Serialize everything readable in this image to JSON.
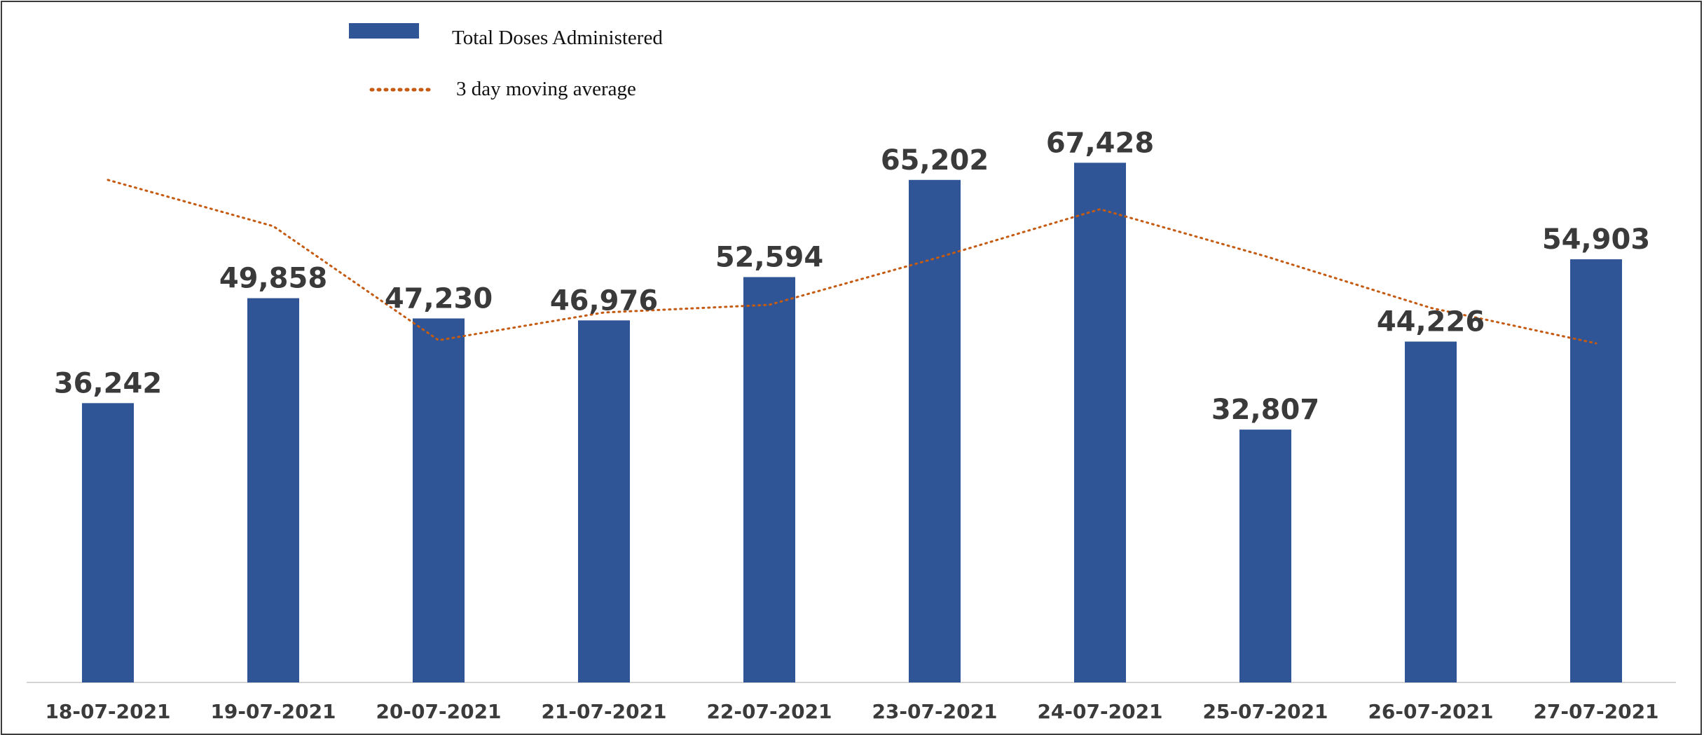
{
  "chart_data": {
    "type": "bar",
    "categories": [
      "18-07-2021",
      "19-07-2021",
      "20-07-2021",
      "21-07-2021",
      "22-07-2021",
      "23-07-2021",
      "24-07-2021",
      "25-07-2021",
      "26-07-2021",
      "27-07-2021"
    ],
    "series": [
      {
        "name": "Total Doses Administered",
        "type": "bar",
        "color": "#2f5597",
        "values": [
          36242,
          49858,
          47230,
          46976,
          52594,
          65202,
          67428,
          32807,
          44226,
          54903
        ],
        "value_labels": [
          "36,242",
          "49,858",
          "47,230",
          "46,976",
          "52,594",
          "65,202",
          "67,428",
          "32,807",
          "44,226",
          "54,903"
        ]
      },
      {
        "name": "3 day moving average",
        "type": "line",
        "style": "dotted",
        "color": "#c55a11",
        "values": [
          65200,
          59200,
          44400,
          48000,
          49000,
          55000,
          61400,
          55300,
          48600,
          44000
        ]
      }
    ],
    "legend": {
      "position": "top-left",
      "items": [
        "Total Doses Administered",
        "3 day moving average"
      ]
    },
    "title": "",
    "xlabel": "",
    "ylabel": "",
    "ylim": [
      0,
      75000
    ],
    "grid": false,
    "y_axis_visible": false
  }
}
